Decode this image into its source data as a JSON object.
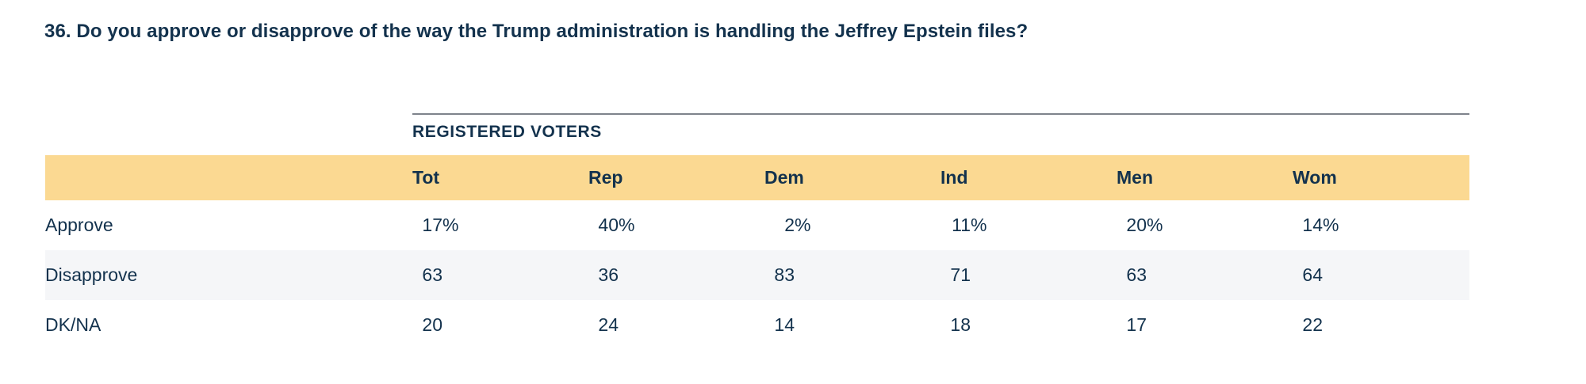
{
  "title": "36. Do you approve or disapprove of the way the Trump administration is handling the Jeffrey Epstein files?",
  "table": {
    "group_header": "REGISTERED VOTERS",
    "columns": [
      "Tot",
      "Rep",
      "Dem",
      "Ind",
      "Men",
      "Wom"
    ],
    "rows": [
      {
        "label": "Approve",
        "values": [
          "17",
          "40",
          "2",
          "11",
          "20",
          "14"
        ],
        "suffix": "%"
      },
      {
        "label": "Disapprove",
        "values": [
          "63",
          "36",
          "83",
          "71",
          "63",
          "64"
        ],
        "suffix": ""
      },
      {
        "label": "DK/NA",
        "values": [
          "20",
          "24",
          "14",
          "18",
          "17",
          "22"
        ],
        "suffix": ""
      }
    ]
  },
  "colors": {
    "text": "#13324D",
    "header_bg": "#FBD992",
    "alt_row_bg": "#F5F6F8",
    "rule": "#7E838B",
    "page_bg": "#FFFFFF"
  }
}
